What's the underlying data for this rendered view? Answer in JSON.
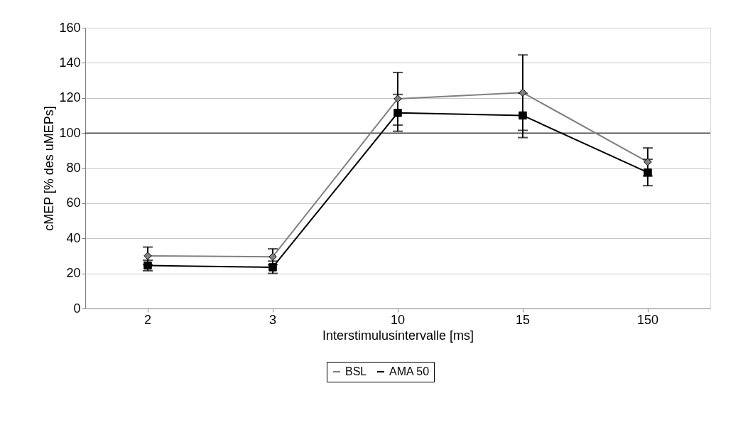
{
  "chart_data": {
    "type": "line",
    "xlabel": "Interstimulusintervalle [ms]",
    "ylabel": "cMEP [% des uMEPs]",
    "categories": [
      "2",
      "3",
      "10",
      "15",
      "150"
    ],
    "series": [
      {
        "name": "BSL",
        "color": "#808080",
        "marker": "diamond",
        "values": [
          30,
          29.5,
          119.5,
          123,
          83.5
        ],
        "errors": [
          5,
          4.5,
          15,
          21.5,
          8
        ]
      },
      {
        "name": "AMA 50",
        "color": "#000000",
        "marker": "square",
        "values": [
          24.5,
          23.5,
          111.5,
          110,
          77.5
        ],
        "errors": [
          3,
          3.5,
          10.5,
          12.6,
          7.5
        ]
      }
    ],
    "ylim": [
      0,
      160
    ],
    "yticks": [
      0,
      20,
      40,
      60,
      80,
      100,
      120,
      140,
      160
    ],
    "ref_lines": [
      {
        "axis": "y",
        "value": 100,
        "color": "#000000"
      }
    ],
    "grid": "y",
    "legend": "bottom",
    "line_style": "solid"
  }
}
